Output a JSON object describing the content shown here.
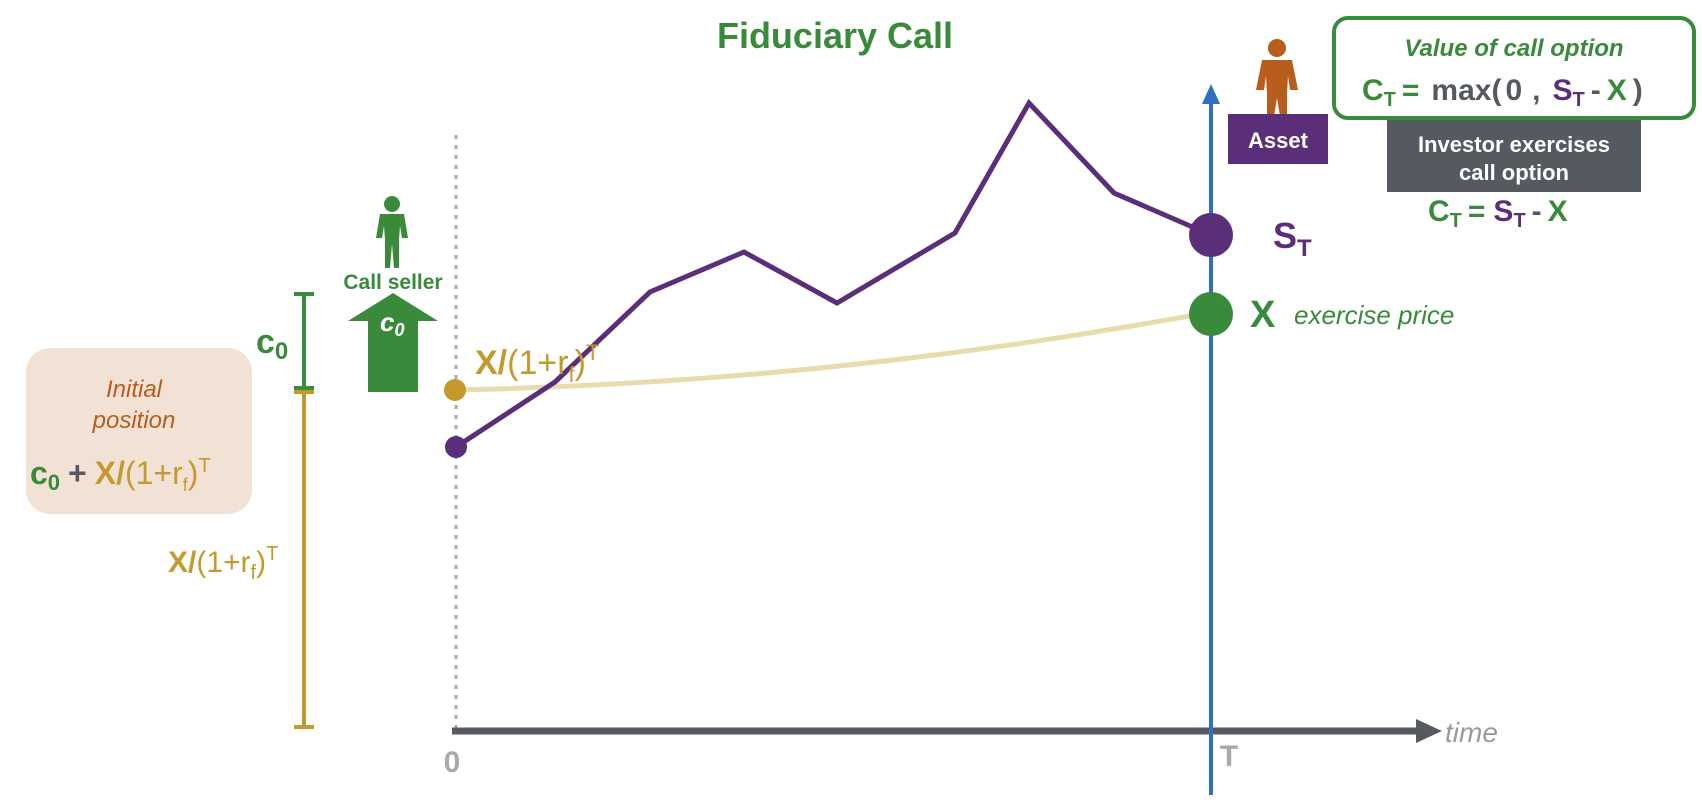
{
  "title": "Fiduciary Call",
  "colors": {
    "green": "#3a8a3c",
    "purple": "#5a2e78",
    "gold": "#c49a2e",
    "gold_light": "#e8dcae",
    "blue": "#2f6fc4",
    "axis_gray": "#555a60",
    "dot_gray": "#aaaaaa",
    "orange": "#b85d1c",
    "peach_box": "#f2e2d6",
    "dark_box": "#555a60"
  },
  "axis": {
    "time_label": "time",
    "origin_label": "0",
    "maturity_label": "T"
  },
  "call_seller": {
    "label": "Call seller",
    "arrow_label": "c",
    "arrow_sub": "0"
  },
  "c0_bracket": {
    "label": "c",
    "sub": "0"
  },
  "pv_bracket": {
    "x": "X/",
    "rest": "(1+r",
    "sub": "f",
    "close": ")",
    "sup": "T"
  },
  "initial_position": {
    "line1": "Initial",
    "line2": "position",
    "c": "c",
    "c_sub": "0",
    "plus": "+",
    "x": "X/",
    "rest": "(1+r",
    "sub": "f",
    "close": ")",
    "sup": "T"
  },
  "pv_curve_label": {
    "x": "X/",
    "rest": "(1+r",
    "sub": "f",
    "close": ")",
    "sup": "T"
  },
  "asset_label": "Asset",
  "st_label": {
    "s": "S",
    "sub": "T"
  },
  "x_label": "X",
  "exercise_price_label": "exercise price",
  "value_box": {
    "title": "Value of call option",
    "c": "C",
    "c_sub": "T",
    "eq": "=",
    "max": "max(",
    "zero": "0",
    "comma": ",",
    "s": "S",
    "s_sub": "T",
    "minus": "-",
    "x": "X",
    "close": ")"
  },
  "exercise_box": {
    "line1": "Investor exercises",
    "line2": "call option"
  },
  "exercise_formula": {
    "c": "C",
    "c_sub": "T",
    "eq": "=",
    "s": "S",
    "s_sub": "T",
    "minus": "-",
    "x": "X"
  }
}
